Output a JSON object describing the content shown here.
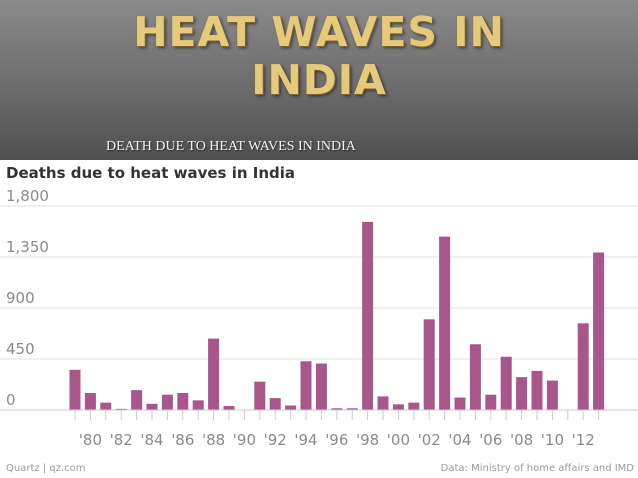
{
  "slide": {
    "title_line1": "HEAT WAVES IN",
    "title_line2": "INDIA",
    "subtitle": "DEATH DUE TO HEAT WAVES IN INDIA"
  },
  "colors": {
    "bar": "#a8578a",
    "grid": "#e2e2e2",
    "baseline": "#cccccc",
    "tick_text": "#8a8a8a"
  },
  "footer": {
    "source_left": "Quartz | qz.com",
    "source_right": "Data: Ministry of home affairs and IMD"
  },
  "chart_data": {
    "type": "bar",
    "title": "Deaths due to heat waves in India",
    "xlabel": "",
    "ylabel": "",
    "ylim": [
      0,
      1800
    ],
    "yticks": [
      0,
      450,
      900,
      1350,
      1800
    ],
    "ytick_labels": [
      "0",
      "450",
      "900",
      "1,350",
      "1,800"
    ],
    "grid": true,
    "categories": [
      1979,
      1980,
      1981,
      1982,
      1983,
      1984,
      1985,
      1986,
      1987,
      1988,
      1989,
      1990,
      1991,
      1992,
      1993,
      1994,
      1995,
      1996,
      1997,
      1998,
      1999,
      2000,
      2001,
      2002,
      2003,
      2004,
      2005,
      2006,
      2007,
      2008,
      2009,
      2010,
      2011,
      2012,
      2013
    ],
    "values": [
      355,
      150,
      65,
      10,
      175,
      55,
      135,
      150,
      85,
      630,
      35,
      0,
      250,
      105,
      40,
      430,
      410,
      15,
      15,
      1660,
      120,
      50,
      65,
      800,
      1530,
      110,
      580,
      135,
      470,
      290,
      345,
      260,
      0,
      765,
      1390
    ],
    "xtick_labels": [
      "'80",
      "'82",
      "'84",
      "'86",
      "'88",
      "'90",
      "'92",
      "'94",
      "'96",
      "'98",
      "'00",
      "'02",
      "'04",
      "'06",
      "'08",
      "'10",
      "'12"
    ],
    "xtick_years": [
      1980,
      1982,
      1984,
      1986,
      1988,
      1990,
      1992,
      1994,
      1996,
      1998,
      2000,
      2002,
      2004,
      2006,
      2008,
      2010,
      2012
    ]
  }
}
